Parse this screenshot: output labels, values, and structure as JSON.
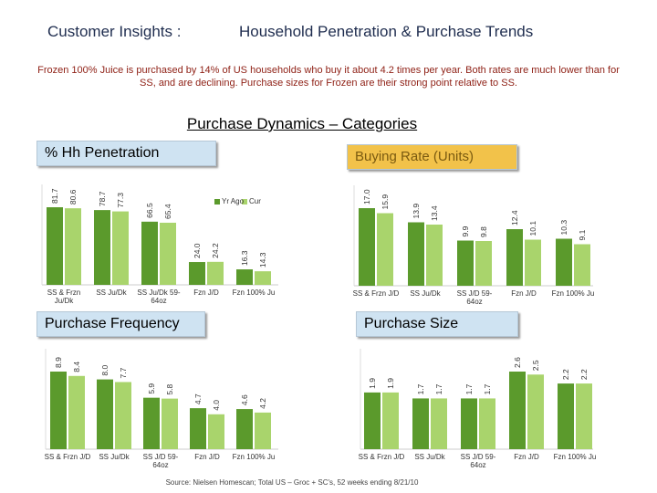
{
  "header": {
    "title_left": "Customer Insights :",
    "title_right": "Household Penetration & Purchase Trends",
    "summary": "Frozen 100% Juice is purchased by 14% of US households who buy it about 4.2 times per year.  Both rates are much lower than for SS, and are declining.  Purchase sizes for Frozen are their strong point relative to SS.",
    "section_title": "Purchase Dynamics – Categories"
  },
  "footer": {
    "source": "Source: Nielsen Homescan;  Total US – Groc + SC's,  52 weeks ending  8/21/10"
  },
  "chart_data": [
    {
      "type": "bar",
      "title": "% Hh Penetration",
      "title_background": "#cfe3f2",
      "legend": true,
      "categories": [
        "SS & Frzn Ju/Dk",
        "SS Ju/Dk",
        "SS Ju/Dk 59-64oz",
        "Fzn J/D",
        "Fzn 100% Ju"
      ],
      "series": [
        {
          "name": "Yr Ago",
          "color": "#5b9a2c",
          "values": [
            81.7,
            78.7,
            66.5,
            24.0,
            16.3
          ],
          "value_labels": [
            "81.7",
            "78.7",
            "66.5",
            "24.0",
            "16.3"
          ]
        },
        {
          "name": "Cur",
          "color": "#a9d46c",
          "values": [
            80.6,
            77.3,
            65.4,
            24.2,
            14.3
          ],
          "value_labels": [
            "80.6",
            "77.3",
            "65.4",
            "24.2",
            "14.3"
          ]
        }
      ]
    },
    {
      "type": "bar",
      "title": "Buying Rate (Units)",
      "title_background": "#f2c24a",
      "legend": false,
      "categories": [
        "SS & Frzn J/D",
        "SS Ju/Dk",
        "SS J/D 59-64oz",
        "Fzn J/D",
        "Fzn 100% Ju"
      ],
      "series": [
        {
          "name": "Yr Ago",
          "color": "#5b9a2c",
          "values": [
            17.0,
            13.9,
            9.9,
            12.4,
            10.3
          ],
          "value_labels": [
            "17.0",
            "13.9",
            "9.9",
            "12.4",
            "10.3"
          ]
        },
        {
          "name": "Cur",
          "color": "#a9d46c",
          "values": [
            15.9,
            13.4,
            9.8,
            10.1,
            9.1
          ],
          "value_labels": [
            "15.9",
            "13.4",
            "9.8",
            "10.1",
            "9.1"
          ]
        }
      ]
    },
    {
      "type": "bar",
      "title": "Purchase Frequency",
      "title_background": "#cfe3f2",
      "legend": false,
      "categories": [
        "SS & Frzn J/D",
        "SS Ju/Dk",
        "SS J/D 59-64oz",
        "Fzn J/D",
        "Fzn 100% Ju"
      ],
      "series": [
        {
          "name": "Yr Ago",
          "color": "#5b9a2c",
          "values": [
            8.9,
            8.0,
            5.9,
            4.7,
            4.6
          ],
          "value_labels": [
            "8.9",
            "8.0",
            "5.9",
            "4.7",
            "4.6"
          ]
        },
        {
          "name": "Cur",
          "color": "#a9d46c",
          "values": [
            8.4,
            7.7,
            5.8,
            4.0,
            4.2
          ],
          "value_labels": [
            "8.4",
            "7.7",
            "5.8",
            "4.0",
            "4.2"
          ]
        }
      ]
    },
    {
      "type": "bar",
      "title": "Purchase Size",
      "title_background": "#cfe3f2",
      "legend": false,
      "categories": [
        "SS & Frzn J/D",
        "SS Ju/Dk",
        "SS J/D 59-64oz",
        "Fzn J/D",
        "Fzn 100% Ju"
      ],
      "series": [
        {
          "name": "Yr Ago",
          "color": "#5b9a2c",
          "values": [
            1.9,
            1.7,
            1.7,
            2.6,
            2.2
          ],
          "value_labels": [
            "1.9",
            "1.7",
            "1.7",
            "2.6",
            "2.2"
          ]
        },
        {
          "name": "Cur",
          "color": "#a9d46c",
          "values": [
            1.9,
            1.7,
            1.7,
            2.5,
            2.2
          ],
          "value_labels": [
            "1.9",
            "1.7",
            "1.7",
            "2.5",
            "2.2"
          ]
        }
      ]
    }
  ]
}
